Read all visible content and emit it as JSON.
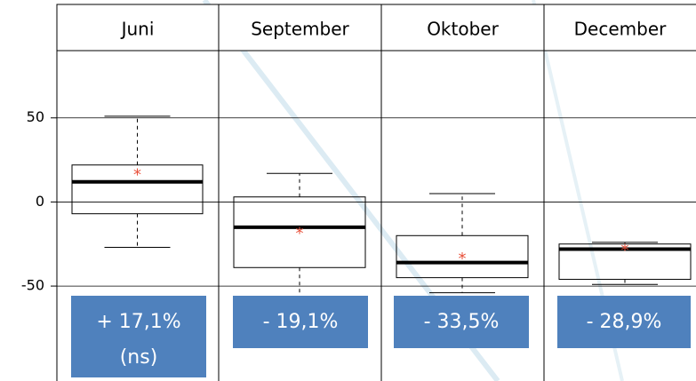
{
  "chart_data": {
    "type": "box",
    "categories": [
      "Juni",
      "September",
      "Oktober",
      "December"
    ],
    "boxes": [
      {
        "min": -27,
        "q1": -7,
        "median": 12,
        "q3": 22,
        "max": 51,
        "mean": 18
      },
      {
        "min": -62,
        "q1": -39,
        "median": -15,
        "q3": 3,
        "max": 17,
        "mean": -17
      },
      {
        "min": -54,
        "q1": -45,
        "median": -36,
        "q3": -20,
        "max": 5,
        "mean": -32
      },
      {
        "min": -49,
        "q1": -46,
        "median": -28,
        "q3": -25,
        "max": -24,
        "mean": -27
      }
    ],
    "ylim": [
      -65,
      90
    ],
    "yticks": [
      -50,
      0,
      50
    ],
    "grid": true,
    "annotations": [
      "+ 17,1%",
      "- 19,1%",
      "- 33,5%",
      "- 28,9%"
    ],
    "annotation_note": "(ns)"
  }
}
